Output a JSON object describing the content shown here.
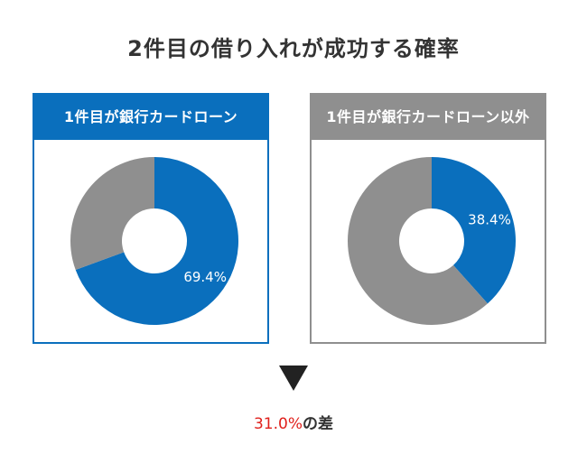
{
  "title": "2件目の借り入れが成功する確率",
  "colors": {
    "blue": "#0a6fbd",
    "gray": "#8f8f8f",
    "red": "#e0201c"
  },
  "chart_data": [
    {
      "type": "pie",
      "title": "1件目が銀行カードローン",
      "slices": [
        {
          "value": 69.4,
          "label": "69.4%",
          "color": "#0a6fbd"
        },
        {
          "value": 30.6,
          "label": "",
          "color": "#8f8f8f"
        }
      ]
    },
    {
      "type": "pie",
      "title": "1件目が銀行カードローン以外",
      "slices": [
        {
          "value": 38.4,
          "label": "38.4%",
          "color": "#0a6fbd"
        },
        {
          "value": 61.6,
          "label": "",
          "color": "#8f8f8f"
        }
      ]
    }
  ],
  "difference": {
    "value": "31.0%",
    "suffix": "の差"
  },
  "arrow_icon": "down-triangle-icon"
}
